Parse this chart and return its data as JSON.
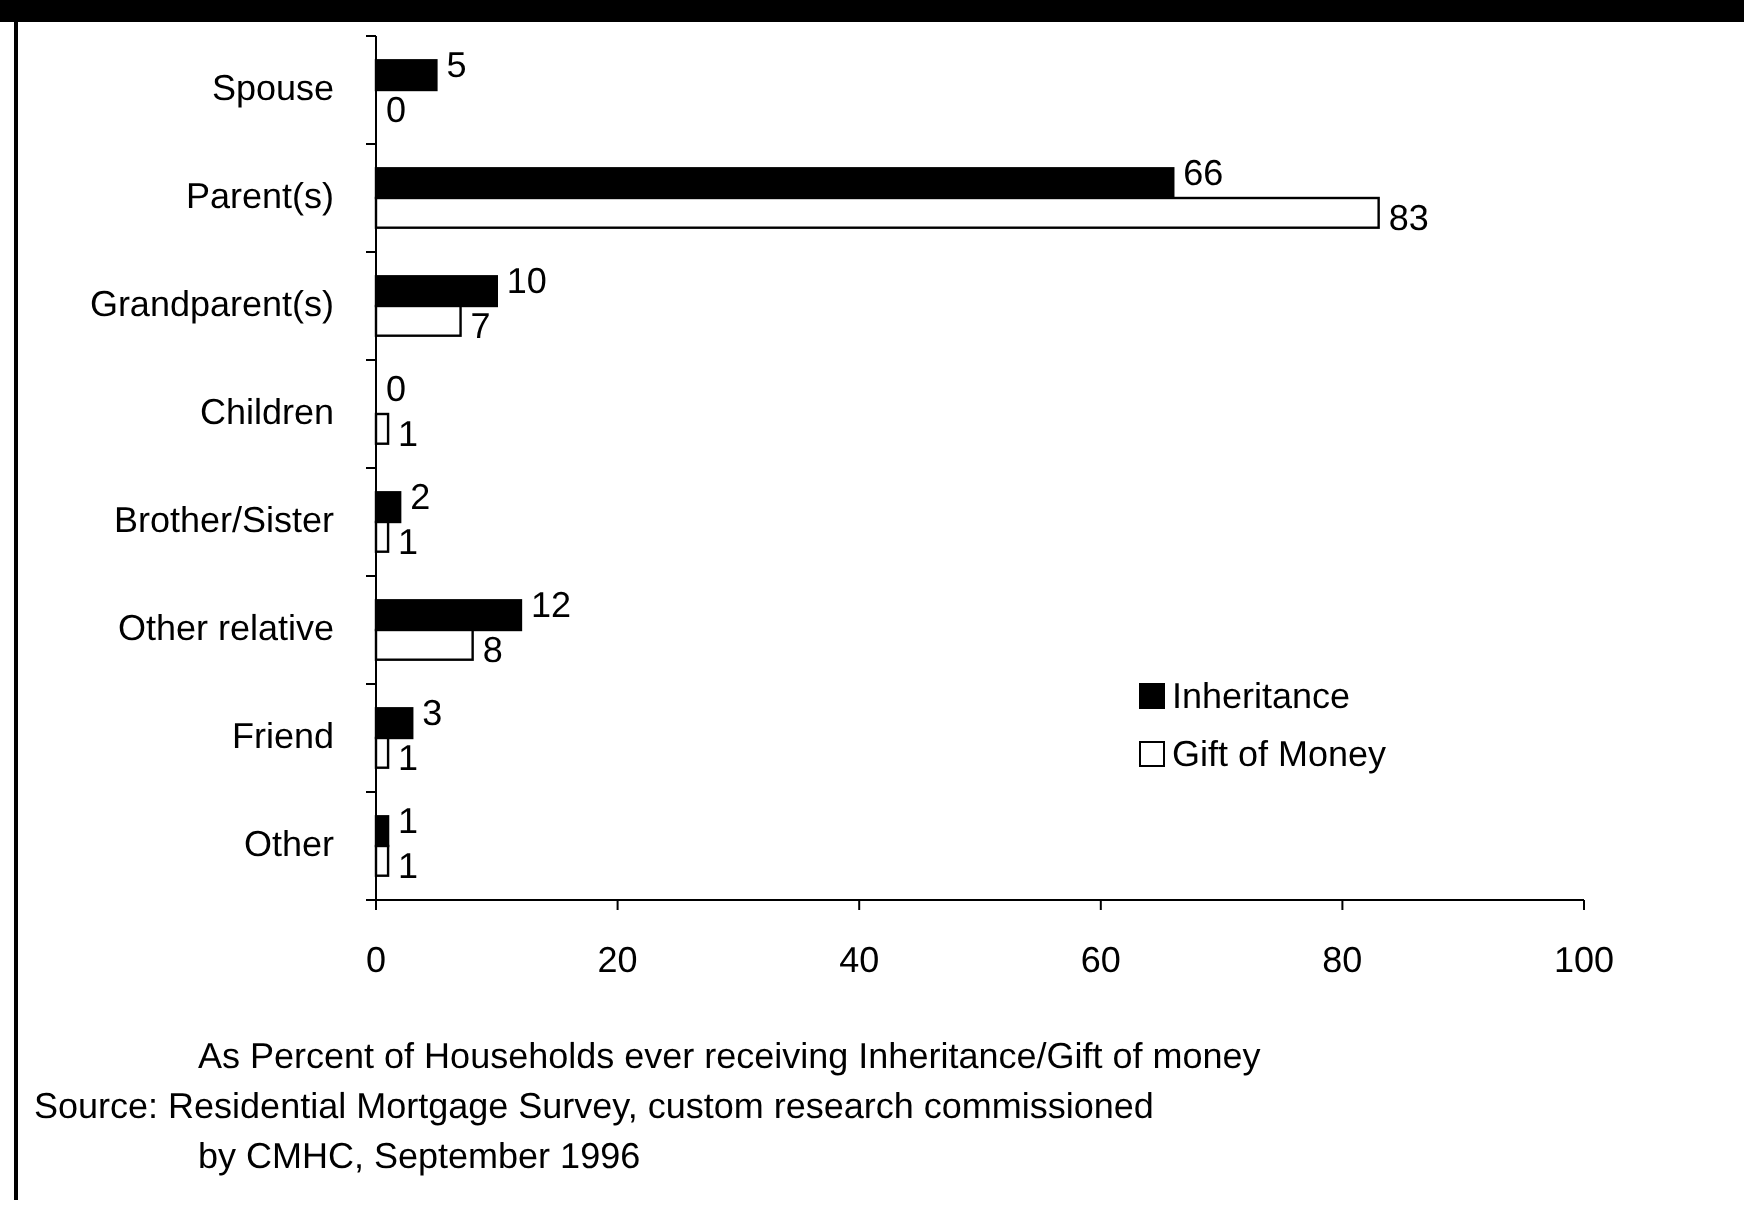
{
  "chart_data": {
    "type": "bar",
    "orientation": "horizontal",
    "categories": [
      "Spouse",
      "Parent(s)",
      "Grandparent(s)",
      "Children",
      "Brother/Sister",
      "Other relative",
      "Friend",
      "Other"
    ],
    "series": [
      {
        "name": "Inheritance",
        "color": "#000000",
        "values": [
          5,
          66,
          10,
          0,
          2,
          12,
          3,
          1
        ]
      },
      {
        "name": "Gift of Money",
        "color": "#ffffff",
        "values": [
          0,
          83,
          7,
          1,
          1,
          8,
          1,
          1
        ]
      }
    ],
    "xlim": [
      0,
      100
    ],
    "xticks": [
      0,
      20,
      40,
      60,
      80,
      100
    ],
    "grid": false,
    "legend": "right",
    "data_labels": true,
    "annotations": [
      "As Percent of Households ever receiving Inheritance/Gift of money",
      "Source: Residential Mortgage Survey, custom research commissioned by CMHC, September 1996"
    ]
  }
}
